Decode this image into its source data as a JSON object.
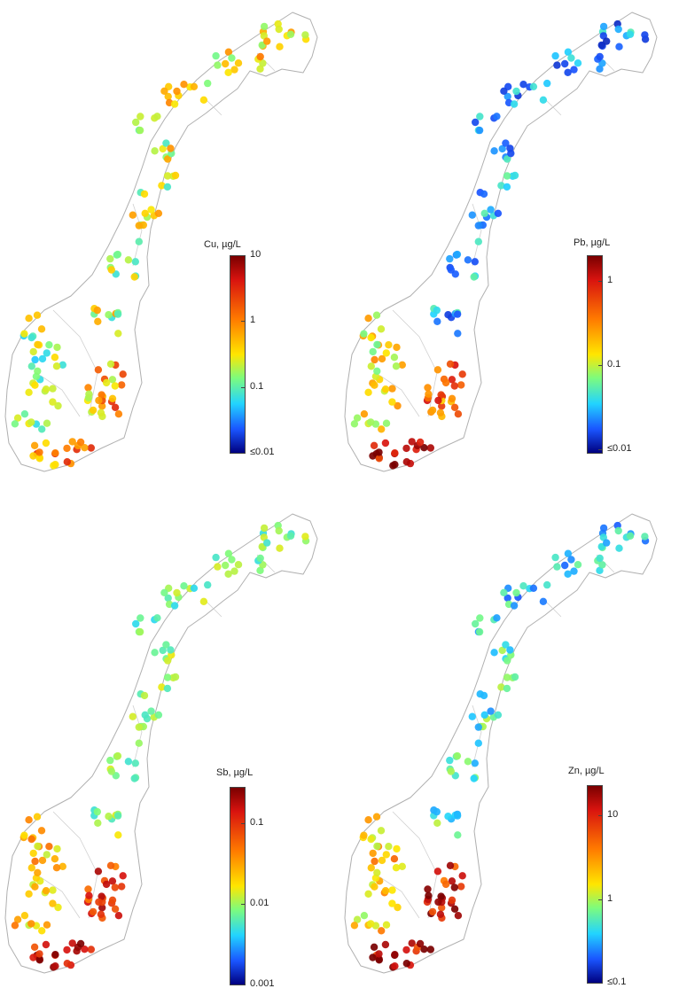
{
  "panels": [
    {
      "element": "Cu",
      "unit_label": "Cu, µg/L",
      "colorbar_ticks": [
        "10",
        "1",
        "0.1",
        "≤0.01"
      ],
      "colorbar_range": [
        "≤0.01",
        "10"
      ],
      "pattern": {
        "north": 0.55,
        "mid": 0.5,
        "southwest": 0.45,
        "southeast": 0.65,
        "south": 0.72,
        "noise": 0.18
      }
    },
    {
      "element": "Pb",
      "unit_label": "Pb,  µg/L",
      "colorbar_ticks": [
        "1",
        "0.1",
        "≤0.01"
      ],
      "colorbar_range": [
        "≤0.01",
        "1"
      ],
      "pattern": {
        "north": 0.22,
        "mid": 0.25,
        "southwest": 0.55,
        "southeast": 0.72,
        "south": 0.92,
        "noise": 0.15
      }
    },
    {
      "element": "Sb",
      "unit_label": "Sb, µg/L",
      "colorbar_ticks": [
        "0.1",
        "0.01",
        "0.001"
      ],
      "colorbar_range": [
        "0.001",
        "0.1"
      ],
      "pattern": {
        "north": 0.42,
        "mid": 0.45,
        "southwest": 0.62,
        "southeast": 0.82,
        "south": 0.88,
        "noise": 0.12
      }
    },
    {
      "element": "Zn",
      "unit_label": "Zn, µg/L",
      "colorbar_ticks": [
        "10",
        "1",
        "≤0.1"
      ],
      "colorbar_range": [
        "≤0.1",
        "10"
      ],
      "pattern": {
        "north": 0.28,
        "mid": 0.35,
        "southwest": 0.6,
        "southeast": 0.86,
        "south": 0.9,
        "noise": 0.15
      }
    }
  ],
  "colors": {
    "coastline": "#b0b0b0",
    "colormap": [
      "#00007f",
      "#1a55ff",
      "#22d4ff",
      "#7dfc7d",
      "#ffe600",
      "#ff7a00",
      "#d8130f",
      "#7a0000"
    ]
  }
}
